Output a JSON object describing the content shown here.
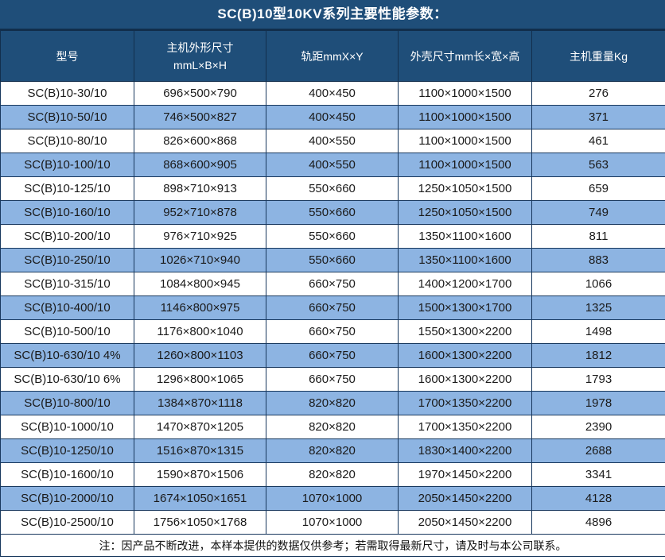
{
  "title": "SC(B)10型10KV系列主要性能参数：",
  "colors": {
    "header_bg": "#1F4E79",
    "row_alt_bg": "#8DB4E2",
    "grid_border": "#17375D",
    "header_text": "#FFFFFF",
    "body_text": "#1A1A1A"
  },
  "table": {
    "columns": [
      {
        "label": "型号"
      },
      {
        "label": "主机外形尺寸",
        "sub": "mmL×B×H"
      },
      {
        "label": "轨距mmX×Y"
      },
      {
        "label": "外壳尺寸mm长×宽×高"
      },
      {
        "label": "主机重量Kg"
      }
    ],
    "rows": [
      [
        "SC(B)10-30/10",
        "696×500×790",
        "400×450",
        "1100×1000×1500",
        "276"
      ],
      [
        "SC(B)10-50/10",
        "746×500×827",
        "400×450",
        "1100×1000×1500",
        "371"
      ],
      [
        "SC(B)10-80/10",
        "826×600×868",
        "400×550",
        "1100×1000×1500",
        "461"
      ],
      [
        "SC(B)10-100/10",
        "868×600×905",
        "400×550",
        "1100×1000×1500",
        "563"
      ],
      [
        "SC(B)10-125/10",
        "898×710×913",
        "550×660",
        "1250×1050×1500",
        "659"
      ],
      [
        "SC(B)10-160/10",
        "952×710×878",
        "550×660",
        "1250×1050×1500",
        "749"
      ],
      [
        "SC(B)10-200/10",
        "976×710×925",
        "550×660",
        "1350×1100×1600",
        "811"
      ],
      [
        "SC(B)10-250/10",
        "1026×710×940",
        "550×660",
        "1350×1100×1600",
        "883"
      ],
      [
        "SC(B)10-315/10",
        "1084×800×945",
        "660×750",
        "1400×1200×1700",
        "1066"
      ],
      [
        "SC(B)10-400/10",
        "1146×800×975",
        "660×750",
        "1500×1300×1700",
        "1325"
      ],
      [
        "SC(B)10-500/10",
        "1176×800×1040",
        "660×750",
        "1550×1300×2200",
        "1498"
      ],
      [
        "SC(B)10-630/10 4%",
        "1260×800×1103",
        "660×750",
        "1600×1300×2200",
        "1812"
      ],
      [
        "SC(B)10-630/10 6%",
        "1296×800×1065",
        "660×750",
        "1600×1300×2200",
        "1793"
      ],
      [
        "SC(B)10-800/10",
        "1384×870×1118",
        "820×820",
        "1700×1350×2200",
        "1978"
      ],
      [
        "SC(B)10-1000/10",
        "1470×870×1205",
        "820×820",
        "1700×1350×2200",
        "2390"
      ],
      [
        "SC(B)10-1250/10",
        "1516×870×1315",
        "820×820",
        "1830×1400×2200",
        "2688"
      ],
      [
        "SC(B)10-1600/10",
        "1590×870×1506",
        "820×820",
        "1970×1450×2200",
        "3341"
      ],
      [
        "SC(B)10-2000/10",
        "1674×1050×1651",
        "1070×1000",
        "2050×1450×2200",
        "4128"
      ],
      [
        "SC(B)10-2500/10",
        "1756×1050×1768",
        "1070×1000",
        "2050×1450×2200",
        "4896"
      ]
    ],
    "note": "注：因产品不断改进，本样本提供的数据仅供参考；若需取得最新尺寸，请及时与本公司联系。"
  }
}
